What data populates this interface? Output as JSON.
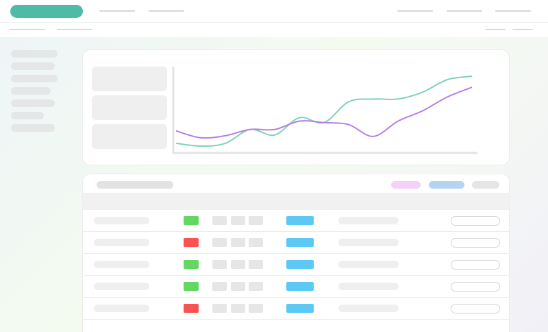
{
  "theme": {
    "brand": "#4dbba6",
    "ok": "#62d862",
    "error": "#fa5252",
    "tag": "#5cc9f5",
    "pill_pink": "#f5d0f7",
    "pill_blue": "#b4d4f1"
  },
  "chart_data": {
    "type": "line",
    "x": [
      0,
      1,
      2,
      3,
      4,
      5,
      6,
      7,
      8,
      9,
      10,
      11,
      12
    ],
    "series": [
      {
        "color": "#7fd3b0",
        "values": [
          8,
          4,
          8,
          28,
          20,
          45,
          38,
          68,
          72,
          72,
          82,
          100,
          105
        ]
      },
      {
        "color": "#b57ee6",
        "values": [
          26,
          16,
          19,
          28,
          28,
          40,
          38,
          35,
          18,
          40,
          55,
          75,
          89
        ]
      }
    ],
    "ylim": [
      0,
      115
    ],
    "grid": false
  },
  "table": {
    "rows": [
      {
        "status": "ok"
      },
      {
        "status": "error"
      },
      {
        "status": "ok"
      },
      {
        "status": "ok"
      },
      {
        "status": "error"
      }
    ]
  }
}
